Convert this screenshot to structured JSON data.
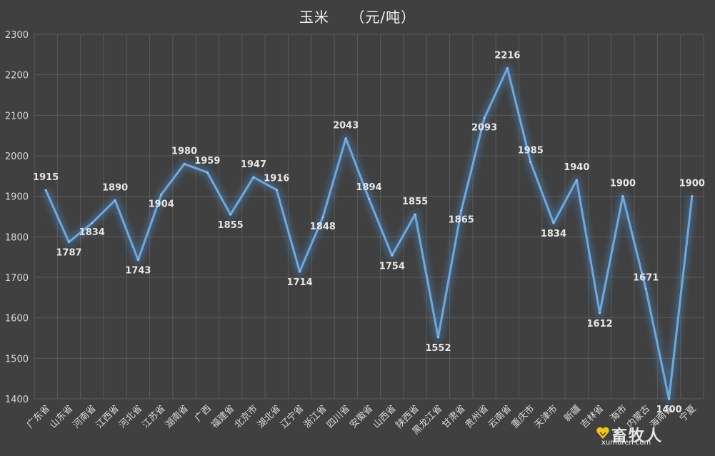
{
  "chart_data": {
    "type": "line",
    "title": "玉米",
    "unit": "（元/吨）",
    "categories": [
      "广东省",
      "山东省",
      "河南省",
      "江西省",
      "河北省",
      "江苏省",
      "湖南省",
      "广西",
      "福建省",
      "北京市",
      "湖北省",
      "辽宁省",
      "浙江省",
      "四川省",
      "安徽省",
      "山西省",
      "陕西省",
      "黑龙江省",
      "甘肃省",
      "贵州省",
      "云南省",
      "重庆市",
      "天津市",
      "新疆",
      "吉林省",
      "上海市",
      "内蒙古",
      "海南省",
      "宁夏"
    ],
    "category_labels_shown": [
      "广东省",
      "山东省",
      "河南省",
      "江西省",
      "河北省",
      "江苏省",
      "湖南省",
      "广西",
      "福建省",
      "北京市",
      "湖北省",
      "辽宁省",
      "浙江省",
      "四川省",
      "安徽省",
      "山西省",
      "陕西省",
      "黑龙江省",
      "甘肃省",
      "贵州省",
      "云南省",
      "重庆市",
      "天津市",
      "新疆",
      "吉林省",
      "海市",
      "内蒙古",
      "海南省",
      "宁夏"
    ],
    "series": [
      {
        "values": [
          1915,
          1787,
          1834,
          1890,
          1743,
          1904,
          1980,
          1959,
          1855,
          1947,
          1916,
          1714,
          1848,
          2043,
          1894,
          1754,
          1855,
          1552,
          1865,
          2093,
          2216,
          1985,
          1834,
          1940,
          1612,
          1900,
          1671,
          1400,
          1900
        ]
      }
    ],
    "ylim": [
      1400,
      2300
    ],
    "yticks": [
      1400,
      1500,
      1600,
      1700,
      1800,
      1900,
      2000,
      2100,
      2200,
      2300
    ],
    "grid": true,
    "legend": "none",
    "line_color": "#6fa8dc",
    "glow_color": "#4a8fd0"
  },
  "watermark": {
    "name": "畜牧人",
    "url_left": "xumuren",
    "url_dot": ".",
    "url_right": "com"
  },
  "colors": {
    "background": "#404040",
    "grid": "#5a5a5a",
    "text": "#d9d9d9"
  }
}
